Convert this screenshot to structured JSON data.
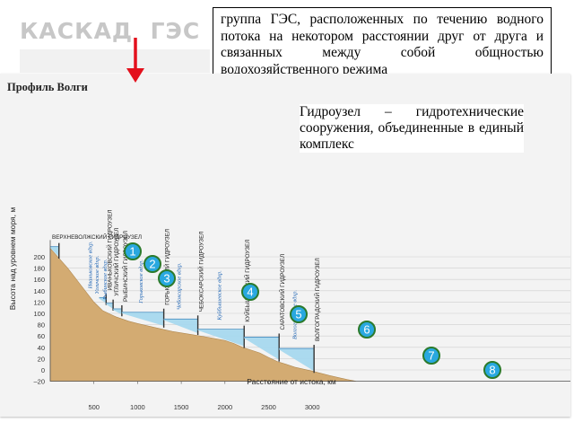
{
  "title": "КАСКАД  ГЭС",
  "definition": "группа ГЭС, расположенных по течению водного потока на некотором расстоянии друг от друга и связанных между собой общностью водохозяйственного режима",
  "definition2": "Гидроузел – гидротехнические сооружения, объединенные в единый комплекс",
  "chart_data": {
    "type": "area",
    "title": "Профиль Волги",
    "xlabel": "Расстояние от истока, км",
    "ylabel": "Высота над уровнем моря, м",
    "xlim": [
      0,
      3500
    ],
    "ylim": [
      -20,
      220
    ],
    "x_ticks": [
      "500",
      "1000",
      "1500",
      "2000",
      "2500",
      "3000"
    ],
    "y_ticks": [
      "200",
      "180",
      "160",
      "140",
      "120",
      "100",
      "80",
      "60",
      "40",
      "20",
      "0",
      "–20"
    ],
    "riverbed": [
      [
        0,
        215
      ],
      [
        200,
        180
      ],
      [
        350,
        150
      ],
      [
        500,
        120
      ],
      [
        600,
        105
      ],
      [
        750,
        94
      ],
      [
        900,
        86
      ],
      [
        1000,
        82
      ],
      [
        1200,
        75
      ],
      [
        1400,
        68
      ],
      [
        1600,
        63
      ],
      [
        1800,
        58
      ],
      [
        2000,
        52
      ],
      [
        2100,
        47
      ],
      [
        2200,
        40
      ],
      [
        2300,
        35
      ],
      [
        2400,
        30
      ],
      [
        2500,
        22
      ],
      [
        2600,
        15
      ],
      [
        2700,
        10
      ],
      [
        2800,
        5
      ],
      [
        3000,
        -2
      ],
      [
        3200,
        -10
      ],
      [
        3400,
        -17
      ],
      [
        3500,
        -20
      ]
    ],
    "reservoirs": [
      {
        "name": "ВЕРХНЕВОЛЖСКИЙ ГИДРОУЗЕЛ",
        "reservoir": "",
        "x_start": 0,
        "x_dam": 100,
        "water": 218,
        "bed": 200
      },
      {
        "name": "ИВАНЬКОВСКИЙ ГИДРОУЗЕЛ",
        "reservoir": "Иваньковское вдхр.",
        "x_start": 560,
        "x_dam": 640,
        "water": 128,
        "bed": 118
      },
      {
        "name": "УГЛИЧСКИЙ ГИДРОУЗЕЛ",
        "reservoir": "Угличское вдхр.",
        "x_start": 640,
        "x_dam": 720,
        "water": 118,
        "bed": 108
      },
      {
        "name": "РЫБИНСКИЙ ГИДРОУЗЕЛ",
        "reservoir": "Рыбинское вдхр.",
        "x_start": 720,
        "x_dam": 820,
        "water": 108,
        "bed": 98
      },
      {
        "name": "ГОРЬКОВСКИЙ ГИДРОУЗЕЛ",
        "reservoir": "Горьковское вдхр.",
        "x_start": 820,
        "x_dam": 1300,
        "water": 102,
        "bed": 78
      },
      {
        "name": "ЧЕБОКСАРСКИЙ ГИДРОУЗЕЛ",
        "reservoir": "Чебоксарское вдхр.",
        "x_start": 1300,
        "x_dam": 1690,
        "water": 90,
        "bed": 65
      },
      {
        "name": "КУЙБЫШЕВСКИЙ ГИДРОУЗЕЛ",
        "reservoir": "Куйбышевское вдхр.",
        "x_start": 1690,
        "x_dam": 2220,
        "water": 72,
        "bed": 42
      },
      {
        "name": "САРАТОВСКИЙ ГИДРОУЗЕЛ",
        "reservoir": "",
        "x_start": 2220,
        "x_dam": 2620,
        "water": 58,
        "bed": 18
      },
      {
        "name": "ВОЛГОГРАДСКИЙ ГИДРОУЗЕЛ",
        "reservoir": "Волгоградское вдхр.",
        "x_start": 2620,
        "x_dam": 3020,
        "water": 38,
        "bed": -2
      }
    ],
    "steps": [
      "1",
      "2",
      "3",
      "4",
      "5",
      "6",
      "7",
      "8"
    ]
  },
  "colors": {
    "ground": "#d3ab72",
    "water": "#a6d8ee",
    "marker_fill": "#29a8e0",
    "marker_stroke": "#2c7a2c",
    "arrow": "#e3101c",
    "title": "#c7c7c7"
  }
}
